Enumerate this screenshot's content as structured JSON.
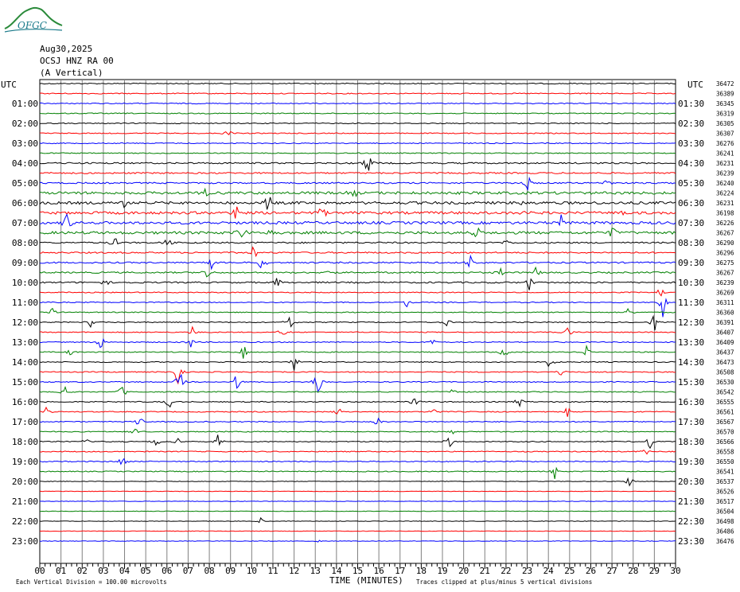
{
  "logo": {
    "text": "OFGC"
  },
  "header": {
    "date": "Aug30,2025",
    "station": "OCSJ HNZ RA 00",
    "component": "(A Vertical)"
  },
  "footer": {
    "scale_note": "Each Vertical Division =  100.00 microvolts",
    "axis_title": "TIME (MINUTES)",
    "clip_note": "Traces clipped at plus/minus 5 vertical divisions"
  },
  "colors": {
    "trace_cycle": [
      "#000000",
      "#ff0000",
      "#0000ff",
      "#008000"
    ],
    "grid": "#808080"
  },
  "chart_data": {
    "type": "line",
    "title": "",
    "xlabel": "TIME (MINUTES)",
    "x_ticks": [
      "00",
      "01",
      "02",
      "03",
      "04",
      "05",
      "06",
      "07",
      "08",
      "09",
      "10",
      "11",
      "12",
      "13",
      "14",
      "15",
      "16",
      "17",
      "18",
      "19",
      "20",
      "21",
      "22",
      "23",
      "24",
      "25",
      "26",
      "27",
      "28",
      "29",
      "30"
    ],
    "xlim": [
      0,
      30
    ],
    "left_axis_unit": "UTC",
    "right_axis_unit": "UTC",
    "left_labels": [
      "01:00",
      "02:00",
      "03:00",
      "04:00",
      "05:00",
      "06:00",
      "07:00",
      "08:00",
      "09:00",
      "10:00",
      "11:00",
      "12:00",
      "13:00",
      "14:00",
      "15:00",
      "16:00",
      "17:00",
      "18:00",
      "19:00",
      "20:00",
      "21:00",
      "22:00",
      "23:00"
    ],
    "right_labels": [
      "01:30",
      "02:30",
      "03:30",
      "04:30",
      "05:30",
      "06:30",
      "07:30",
      "08:30",
      "09:30",
      "10:30",
      "11:30",
      "12:30",
      "13:30",
      "14:30",
      "15:30",
      "16:30",
      "17:30",
      "18:30",
      "19:30",
      "20:30",
      "21:30",
      "22:30",
      "23:30"
    ],
    "trace_counts": [
      "36472",
      "36389",
      "36345",
      "36319",
      "36305",
      "36307",
      "36276",
      "36241",
      "36231",
      "36239",
      "36240",
      "36224",
      "36231",
      "36198",
      "36226",
      "36267",
      "36290",
      "36296",
      "36275",
      "36267",
      "36239",
      "36269",
      "36311",
      "36360",
      "36391",
      "36407",
      "36409",
      "36437",
      "36473",
      "36508",
      "36530",
      "36542",
      "36555",
      "36561",
      "36567",
      "36570",
      "36566",
      "36558",
      "36550",
      "36541",
      "36537",
      "36526",
      "36517",
      "36504",
      "36498",
      "36486",
      "36476"
    ],
    "grid": true,
    "events": [
      {
        "trace": 5,
        "x": 8.9,
        "amp": 0.6
      },
      {
        "trace": 8,
        "x": 15.5,
        "amp": 1.4
      },
      {
        "trace": 10,
        "x": 23.0,
        "amp": 1.2
      },
      {
        "trace": 10,
        "x": 26.8,
        "amp": 1.0
      },
      {
        "trace": 11,
        "x": 7.8,
        "amp": 0.8
      },
      {
        "trace": 11,
        "x": 14.8,
        "amp": 0.8
      },
      {
        "trace": 12,
        "x": 10.8,
        "amp": 1.3
      },
      {
        "trace": 12,
        "x": 4.0,
        "amp": 0.6
      },
      {
        "trace": 12,
        "x": 22.8,
        "amp": 0.7
      },
      {
        "trace": 13,
        "x": 9.3,
        "amp": 1.3
      },
      {
        "trace": 13,
        "x": 13.3,
        "amp": 1.0
      },
      {
        "trace": 13,
        "x": 22.8,
        "amp": 0.9
      },
      {
        "trace": 13,
        "x": 27.5,
        "amp": 1.0
      },
      {
        "trace": 14,
        "x": 1.3,
        "amp": 1.2
      },
      {
        "trace": 14,
        "x": 24.6,
        "amp": 0.8
      },
      {
        "trace": 15,
        "x": 9.5,
        "amp": 0.9
      },
      {
        "trace": 15,
        "x": 11.0,
        "amp": 1.0
      },
      {
        "trace": 15,
        "x": 20.6,
        "amp": 1.0
      },
      {
        "trace": 15,
        "x": 27.0,
        "amp": 0.9
      },
      {
        "trace": 16,
        "x": 3.5,
        "amp": 0.9
      },
      {
        "trace": 16,
        "x": 6.0,
        "amp": 0.7
      },
      {
        "trace": 16,
        "x": 22.0,
        "amp": 0.6
      },
      {
        "trace": 17,
        "x": 10.1,
        "amp": 1.0
      },
      {
        "trace": 18,
        "x": 8.1,
        "amp": 0.9
      },
      {
        "trace": 18,
        "x": 10.5,
        "amp": 1.1
      },
      {
        "trace": 18,
        "x": 20.3,
        "amp": 0.9
      },
      {
        "trace": 19,
        "x": 7.9,
        "amp": 0.8
      },
      {
        "trace": 19,
        "x": 13.7,
        "amp": 0.6
      },
      {
        "trace": 19,
        "x": 21.7,
        "amp": 0.8
      },
      {
        "trace": 19,
        "x": 23.4,
        "amp": 0.6
      },
      {
        "trace": 20,
        "x": 3.1,
        "amp": 0.6
      },
      {
        "trace": 20,
        "x": 11.2,
        "amp": 0.7
      },
      {
        "trace": 20,
        "x": 23.1,
        "amp": 1.0
      },
      {
        "trace": 21,
        "x": 29.3,
        "amp": 0.6
      },
      {
        "trace": 22,
        "x": 17.3,
        "amp": 0.8
      },
      {
        "trace": 22,
        "x": 29.4,
        "amp": 1.5
      },
      {
        "trace": 23,
        "x": 0.6,
        "amp": 0.6
      },
      {
        "trace": 23,
        "x": 27.8,
        "amp": 0.6
      },
      {
        "trace": 24,
        "x": 2.4,
        "amp": 0.8
      },
      {
        "trace": 24,
        "x": 11.8,
        "amp": 1.1
      },
      {
        "trace": 24,
        "x": 19.2,
        "amp": 0.5
      },
      {
        "trace": 24,
        "x": 29.0,
        "amp": 1.0
      },
      {
        "trace": 25,
        "x": 7.2,
        "amp": 0.6
      },
      {
        "trace": 25,
        "x": 11.5,
        "amp": 0.8
      },
      {
        "trace": 25,
        "x": 24.9,
        "amp": 0.6
      },
      {
        "trace": 26,
        "x": 2.9,
        "amp": 1.0
      },
      {
        "trace": 26,
        "x": 7.1,
        "amp": 0.7
      },
      {
        "trace": 26,
        "x": 18.5,
        "amp": 0.5
      },
      {
        "trace": 27,
        "x": 1.4,
        "amp": 0.5
      },
      {
        "trace": 27,
        "x": 9.6,
        "amp": 1.0
      },
      {
        "trace": 27,
        "x": 21.9,
        "amp": 0.8
      },
      {
        "trace": 27,
        "x": 25.8,
        "amp": 0.7
      },
      {
        "trace": 28,
        "x": 12.0,
        "amp": 0.9
      },
      {
        "trace": 28,
        "x": 24.1,
        "amp": 1.0
      },
      {
        "trace": 29,
        "x": 6.5,
        "amp": 2.0
      },
      {
        "trace": 29,
        "x": 24.6,
        "amp": 0.8
      },
      {
        "trace": 30,
        "x": 6.6,
        "amp": 1.4
      },
      {
        "trace": 30,
        "x": 9.3,
        "amp": 1.1
      },
      {
        "trace": 30,
        "x": 13.1,
        "amp": 2.0
      },
      {
        "trace": 31,
        "x": 1.2,
        "amp": 0.6
      },
      {
        "trace": 31,
        "x": 3.9,
        "amp": 0.8
      },
      {
        "trace": 31,
        "x": 19.5,
        "amp": 0.6
      },
      {
        "trace": 32,
        "x": 6.1,
        "amp": 0.8
      },
      {
        "trace": 32,
        "x": 17.7,
        "amp": 0.8
      },
      {
        "trace": 32,
        "x": 22.6,
        "amp": 0.8
      },
      {
        "trace": 33,
        "x": 0.3,
        "amp": 0.5
      },
      {
        "trace": 33,
        "x": 14.1,
        "amp": 0.6
      },
      {
        "trace": 33,
        "x": 18.6,
        "amp": 0.6
      },
      {
        "trace": 33,
        "x": 24.9,
        "amp": 0.8
      },
      {
        "trace": 34,
        "x": 4.7,
        "amp": 0.9
      },
      {
        "trace": 34,
        "x": 15.9,
        "amp": 0.7
      },
      {
        "trace": 35,
        "x": 4.5,
        "amp": 0.6
      },
      {
        "trace": 35,
        "x": 19.6,
        "amp": 0.6
      },
      {
        "trace": 36,
        "x": 2.2,
        "amp": 0.7
      },
      {
        "trace": 36,
        "x": 5.5,
        "amp": 0.8
      },
      {
        "trace": 36,
        "x": 6.5,
        "amp": 0.6
      },
      {
        "trace": 36,
        "x": 8.4,
        "amp": 0.7
      },
      {
        "trace": 36,
        "x": 19.3,
        "amp": 0.8
      },
      {
        "trace": 36,
        "x": 28.8,
        "amp": 1.0
      },
      {
        "trace": 37,
        "x": 28.6,
        "amp": 0.5
      },
      {
        "trace": 38,
        "x": 3.9,
        "amp": 0.8
      },
      {
        "trace": 39,
        "x": 24.3,
        "amp": 0.8
      },
      {
        "trace": 40,
        "x": 27.8,
        "amp": 0.7
      },
      {
        "trace": 44,
        "x": 10.4,
        "amp": 0.5
      },
      {
        "trace": 46,
        "x": 13.1,
        "amp": 0.3
      }
    ]
  }
}
